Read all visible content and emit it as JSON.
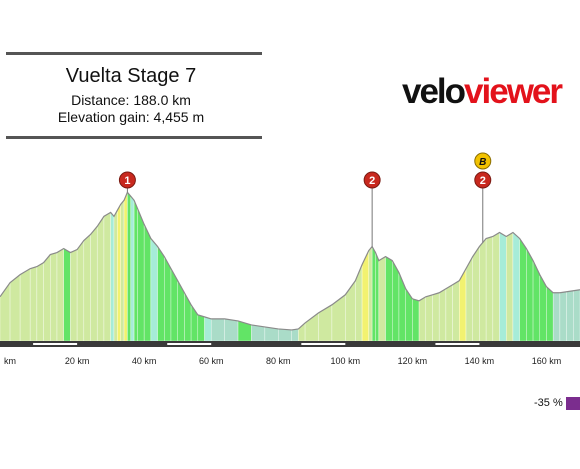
{
  "header": {
    "title": "Vuelta Stage 7",
    "distance": "Distance: 188.0 km",
    "elevation_gain": "Elevation gain: 4,455 m"
  },
  "brand": {
    "velo": "velo",
    "viewer": "viewer",
    "colors": {
      "dark": "#111111",
      "red": "#e3121b"
    }
  },
  "legend": {
    "label": "-35 %",
    "color": "#7b2d8e"
  },
  "colors": {
    "climb_marker": "#c8281e",
    "bonus_marker": "#f2c200",
    "axis_bar": "#3a3a3a"
  },
  "chart_data": {
    "type": "area",
    "title": "",
    "xlabel": "",
    "ylabel": "",
    "x_unit": "km",
    "xlim": [
      -3,
      170
    ],
    "ylim": [
      0,
      1000
    ],
    "x_ticks": [
      0,
      20,
      40,
      60,
      80,
      100,
      120,
      140,
      160
    ],
    "x_tick_labels": [
      "km",
      "20 km",
      "40 km",
      "60 km",
      "80 km",
      "100 km",
      "120 km",
      "140 km",
      "160 km"
    ],
    "profile": [
      {
        "x": -3,
        "y": 220
      },
      {
        "x": 0,
        "y": 290
      },
      {
        "x": 3,
        "y": 330
      },
      {
        "x": 6,
        "y": 360
      },
      {
        "x": 8,
        "y": 370
      },
      {
        "x": 10,
        "y": 390
      },
      {
        "x": 12,
        "y": 430
      },
      {
        "x": 14,
        "y": 440
      },
      {
        "x": 16,
        "y": 460
      },
      {
        "x": 18,
        "y": 440
      },
      {
        "x": 20,
        "y": 455
      },
      {
        "x": 22,
        "y": 500
      },
      {
        "x": 24,
        "y": 530
      },
      {
        "x": 26,
        "y": 570
      },
      {
        "x": 28,
        "y": 620
      },
      {
        "x": 30,
        "y": 640
      },
      {
        "x": 31,
        "y": 620
      },
      {
        "x": 32,
        "y": 650
      },
      {
        "x": 33,
        "y": 680
      },
      {
        "x": 34,
        "y": 700
      },
      {
        "x": 35,
        "y": 740
      },
      {
        "x": 36,
        "y": 720
      },
      {
        "x": 37,
        "y": 700
      },
      {
        "x": 38,
        "y": 660
      },
      {
        "x": 40,
        "y": 580
      },
      {
        "x": 42,
        "y": 510
      },
      {
        "x": 44,
        "y": 470
      },
      {
        "x": 46,
        "y": 420
      },
      {
        "x": 48,
        "y": 360
      },
      {
        "x": 50,
        "y": 300
      },
      {
        "x": 52,
        "y": 240
      },
      {
        "x": 54,
        "y": 180
      },
      {
        "x": 56,
        "y": 130
      },
      {
        "x": 58,
        "y": 120
      },
      {
        "x": 60,
        "y": 110
      },
      {
        "x": 64,
        "y": 110
      },
      {
        "x": 68,
        "y": 100
      },
      {
        "x": 72,
        "y": 80
      },
      {
        "x": 76,
        "y": 70
      },
      {
        "x": 80,
        "y": 60
      },
      {
        "x": 84,
        "y": 55
      },
      {
        "x": 86,
        "y": 60
      },
      {
        "x": 88,
        "y": 90
      },
      {
        "x": 92,
        "y": 140
      },
      {
        "x": 96,
        "y": 180
      },
      {
        "x": 100,
        "y": 230
      },
      {
        "x": 103,
        "y": 300
      },
      {
        "x": 105,
        "y": 380
      },
      {
        "x": 107,
        "y": 450
      },
      {
        "x": 108,
        "y": 470
      },
      {
        "x": 109,
        "y": 440
      },
      {
        "x": 110,
        "y": 400
      },
      {
        "x": 112,
        "y": 420
      },
      {
        "x": 114,
        "y": 400
      },
      {
        "x": 116,
        "y": 340
      },
      {
        "x": 118,
        "y": 260
      },
      {
        "x": 120,
        "y": 210
      },
      {
        "x": 122,
        "y": 200
      },
      {
        "x": 124,
        "y": 220
      },
      {
        "x": 126,
        "y": 230
      },
      {
        "x": 128,
        "y": 240
      },
      {
        "x": 130,
        "y": 260
      },
      {
        "x": 132,
        "y": 280
      },
      {
        "x": 134,
        "y": 300
      },
      {
        "x": 136,
        "y": 360
      },
      {
        "x": 138,
        "y": 420
      },
      {
        "x": 140,
        "y": 470
      },
      {
        "x": 142,
        "y": 510
      },
      {
        "x": 144,
        "y": 520
      },
      {
        "x": 146,
        "y": 540
      },
      {
        "x": 148,
        "y": 520
      },
      {
        "x": 150,
        "y": 540
      },
      {
        "x": 152,
        "y": 510
      },
      {
        "x": 154,
        "y": 460
      },
      {
        "x": 156,
        "y": 400
      },
      {
        "x": 158,
        "y": 330
      },
      {
        "x": 160,
        "y": 270
      },
      {
        "x": 162,
        "y": 240
      },
      {
        "x": 164,
        "y": 240
      },
      {
        "x": 166,
        "y": 245
      },
      {
        "x": 168,
        "y": 250
      },
      {
        "x": 170,
        "y": 255
      }
    ],
    "markers": [
      {
        "label": "1",
        "kind": "climb",
        "x": 35
      },
      {
        "label": "2",
        "kind": "climb",
        "x": 108
      },
      {
        "label": "2",
        "kind": "climb",
        "x": 141
      },
      {
        "label": "B",
        "kind": "bonus",
        "x": 141
      }
    ],
    "gradient_colors": {
      "steep_up": "#dede3a",
      "moderate_up": "#f2f270",
      "gentle_up": "#cfe9a0",
      "flat": "#aadcc8",
      "gentle_down": "#a6ecd8",
      "moderate_down": "#62e466",
      "steep_down": "#4fd6e6"
    }
  }
}
